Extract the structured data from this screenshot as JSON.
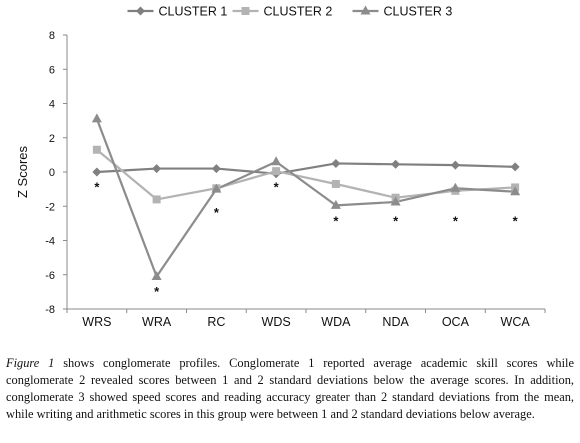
{
  "chart_data": {
    "type": "line",
    "categories": [
      "WRS",
      "WRA",
      "RC",
      "WDS",
      "WDA",
      "NDA",
      "OCA",
      "WCA"
    ],
    "series": [
      {
        "name": "CLUSTER 1",
        "color": "#808080",
        "marker": "diamond",
        "values": [
          0.0,
          0.2,
          0.2,
          -0.1,
          0.5,
          0.45,
          0.4,
          0.3
        ]
      },
      {
        "name": "CLUSTER 2",
        "color": "#b3b3b3",
        "marker": "square",
        "values": [
          1.3,
          -1.6,
          -0.95,
          0.05,
          -0.7,
          -1.5,
          -1.1,
          -0.9
        ]
      },
      {
        "name": "CLUSTER 3",
        "color": "#8c8c8c",
        "marker": "triangle",
        "values": [
          3.1,
          -6.1,
          -1.0,
          0.6,
          -1.95,
          -1.75,
          -0.95,
          -1.15
        ]
      }
    ],
    "ylabel": "Z Scores",
    "xlabel": "",
    "ylim": [
      -8,
      8
    ],
    "yticks": [
      8,
      6,
      4,
      2,
      0,
      -2,
      -4,
      -6,
      -8
    ],
    "grid": false,
    "legend": "top",
    "significance_marks": [
      {
        "category": "WRS",
        "label": "*",
        "y": -0.9
      },
      {
        "category": "WRA",
        "label": "*",
        "y": -7.0
      },
      {
        "category": "RC",
        "label": "*",
        "y": -2.4
      },
      {
        "category": "WDS",
        "label": "*",
        "y": -0.9
      },
      {
        "category": "WDA",
        "label": "*",
        "y": -2.9
      },
      {
        "category": "NDA",
        "label": "*",
        "y": -2.9
      },
      {
        "category": "OCA",
        "label": "*",
        "y": -2.9
      },
      {
        "category": "WCA",
        "label": "*",
        "y": -2.9
      }
    ]
  },
  "caption": {
    "label": "Figure 1",
    "text": " shows conglomerate profiles. Conglomerate 1 reported average academic skill scores while conglomerate 2 revealed scores between 1 and 2 standard deviations below the average scores. In addition, conglomerate 3 showed speed scores and reading accuracy greater than 2 standard deviations from the mean, while writing and arithmetic scores in this group were between 1 and 2 standard deviations below average."
  }
}
